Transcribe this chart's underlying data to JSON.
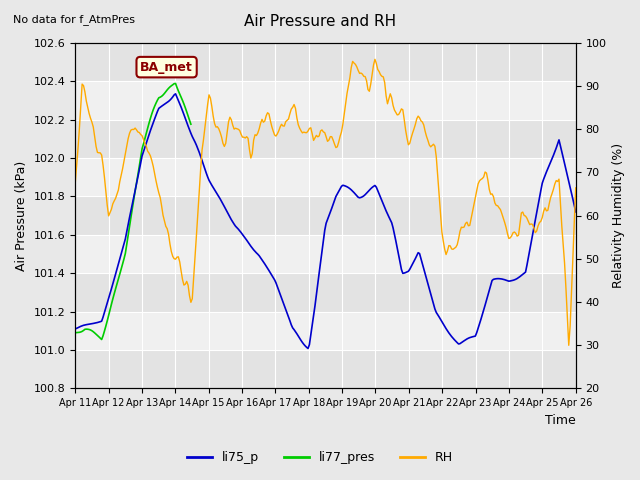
{
  "title": "Air Pressure and RH",
  "no_data_text": "No data for f_AtmPres",
  "station_label": "BA_met",
  "ylabel_left": "Air Pressure (kPa)",
  "ylabel_right": "Relativity Humidity (%)",
  "xlabel": "Time",
  "ylim_left": [
    100.8,
    102.6
  ],
  "ylim_right": [
    20,
    100
  ],
  "yticks_left": [
    100.8,
    101.0,
    101.2,
    101.4,
    101.6,
    101.8,
    102.0,
    102.2,
    102.4,
    102.6
  ],
  "yticks_right": [
    20,
    30,
    40,
    50,
    60,
    70,
    80,
    90,
    100
  ],
  "xtick_labels": [
    "Apr 11",
    "Apr 12",
    "Apr 13",
    "Apr 14",
    "Apr 15",
    "Apr 16",
    "Apr 17",
    "Apr 18",
    "Apr 19",
    "Apr 20",
    "Apr 21",
    "Apr 22",
    "Apr 23",
    "Apr 24",
    "Apr 25",
    "Apr 26"
  ],
  "bg_color": "#e8e8e8",
  "plot_bg_color": "#f0f0f0",
  "line_colors": {
    "li75_p": "#0000cc",
    "li77_pres": "#00cc00",
    "RH": "#ffaa00"
  },
  "legend_entries": [
    "li75_p",
    "li77_pres",
    "RH"
  ]
}
